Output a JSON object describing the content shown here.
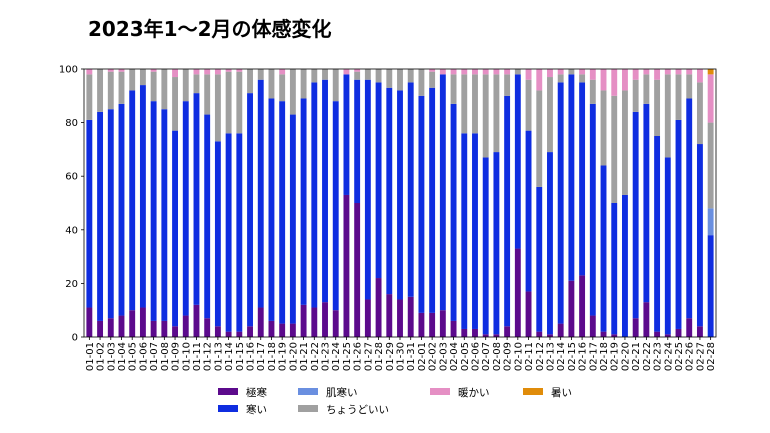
{
  "chart_data": {
    "type": "bar",
    "stacked": true,
    "title": "2023年1〜2月の体感変化",
    "xlabel": "",
    "ylabel": "",
    "ylim": [
      0,
      100
    ],
    "yticks": [
      0,
      20,
      40,
      60,
      80,
      100
    ],
    "legend_position": "bottom",
    "categories": [
      "01-01",
      "01-02",
      "01-03",
      "01-04",
      "01-05",
      "01-06",
      "01-07",
      "01-08",
      "01-09",
      "01-10",
      "01-11",
      "01-12",
      "01-13",
      "01-14",
      "01-15",
      "01-16",
      "01-17",
      "01-18",
      "01-19",
      "01-20",
      "01-21",
      "01-22",
      "01-23",
      "01-24",
      "01-25",
      "01-26",
      "01-27",
      "01-28",
      "01-29",
      "01-30",
      "01-31",
      "02-01",
      "02-02",
      "02-03",
      "02-04",
      "02-05",
      "02-06",
      "02-07",
      "02-08",
      "02-09",
      "02-10",
      "02-11",
      "02-12",
      "02-13",
      "02-14",
      "02-15",
      "02-16",
      "02-17",
      "02-18",
      "02-19",
      "02-20",
      "02-21",
      "02-22",
      "02-23",
      "02-24",
      "02-25",
      "02-26",
      "02-27",
      "02-28"
    ],
    "series": [
      {
        "name": "極寒",
        "color": "#5c0a8c",
        "values": [
          11,
          6,
          7,
          8,
          10,
          11,
          6,
          6,
          4,
          8,
          12,
          7,
          4,
          2,
          2,
          4,
          11,
          6,
          5,
          5,
          12,
          11,
          13,
          10,
          53,
          50,
          14,
          22,
          16,
          14,
          15,
          9,
          9,
          10,
          6,
          3,
          3,
          1,
          1,
          4,
          33,
          17,
          2,
          1,
          5,
          21,
          23,
          8,
          2,
          1,
          0,
          7,
          13,
          2,
          1,
          3,
          7,
          4,
          0
        ]
      },
      {
        "name": "寒い",
        "color": "#0f2de0",
        "values": [
          70,
          78,
          78,
          79,
          82,
          83,
          82,
          79,
          73,
          80,
          79,
          76,
          69,
          74,
          74,
          87,
          85,
          83,
          83,
          78,
          77,
          84,
          83,
          78,
          45,
          46,
          82,
          73,
          77,
          78,
          80,
          81,
          84,
          88,
          81,
          73,
          73,
          66,
          68,
          86,
          65,
          60,
          54,
          68,
          90,
          77,
          72,
          79,
          62,
          49,
          53,
          77,
          74,
          73,
          66,
          78,
          82,
          68,
          38
        ]
      },
      {
        "name": "肌寒い",
        "color": "#6a8fe0",
        "values": [
          0,
          0,
          0,
          0,
          0,
          0,
          0,
          0,
          0,
          0,
          0,
          0,
          0,
          0,
          0,
          0,
          0,
          0,
          0,
          0,
          0,
          0,
          0,
          0,
          0,
          0,
          0,
          0,
          0,
          0,
          0,
          0,
          0,
          0,
          0,
          0,
          0,
          0,
          0,
          0,
          0,
          0,
          0,
          0,
          0,
          0,
          0,
          0,
          0,
          0,
          0,
          0,
          0,
          0,
          0,
          0,
          0,
          0,
          10
        ]
      },
      {
        "name": "ちょうどいい",
        "color": "#a0a0a0",
        "values": [
          17,
          16,
          14,
          12,
          8,
          6,
          11,
          15,
          20,
          12,
          7,
          15,
          25,
          23,
          23,
          9,
          4,
          11,
          10,
          17,
          11,
          5,
          4,
          12,
          0,
          3,
          4,
          5,
          7,
          8,
          5,
          10,
          6,
          0,
          11,
          22,
          22,
          31,
          29,
          8,
          2,
          19,
          36,
          28,
          3,
          2,
          3,
          9,
          28,
          40,
          39,
          12,
          11,
          21,
          31,
          17,
          9,
          23,
          32
        ]
      },
      {
        "name": "暖かい",
        "color": "#e58fc4",
        "values": [
          2,
          0,
          1,
          1,
          0,
          0,
          1,
          0,
          3,
          0,
          2,
          2,
          2,
          1,
          1,
          0,
          0,
          0,
          2,
          0,
          0,
          0,
          0,
          0,
          2,
          1,
          0,
          0,
          0,
          0,
          0,
          0,
          1,
          2,
          2,
          2,
          2,
          2,
          2,
          2,
          0,
          4,
          8,
          3,
          2,
          0,
          2,
          4,
          8,
          10,
          8,
          4,
          2,
          4,
          2,
          2,
          2,
          5,
          18
        ]
      },
      {
        "name": "暑い",
        "color": "#e08c0a",
        "values": [
          0,
          0,
          0,
          0,
          0,
          0,
          0,
          0,
          0,
          0,
          0,
          0,
          0,
          0,
          0,
          0,
          0,
          0,
          0,
          0,
          0,
          0,
          0,
          0,
          0,
          0,
          0,
          0,
          0,
          0,
          0,
          0,
          0,
          0,
          0,
          0,
          0,
          0,
          0,
          0,
          0,
          0,
          0,
          0,
          0,
          0,
          0,
          0,
          0,
          0,
          0,
          0,
          0,
          0,
          0,
          0,
          0,
          0,
          2
        ]
      }
    ]
  }
}
